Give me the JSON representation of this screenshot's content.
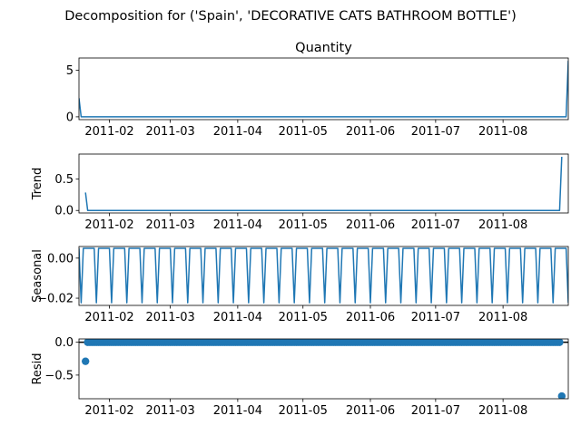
{
  "figure": {
    "suptitle": "Decomposition for ('Spain', 'DECORATIVE CATS BATHROOM BOTTLE')",
    "line_color": "#1f77b4"
  },
  "chart_data": [
    {
      "name": "observed",
      "type": "line",
      "title": "Quantity",
      "ylabel": "",
      "x_range": [
        "2011-01-18",
        "2011-08-31"
      ],
      "ylim": [
        -0.3,
        6.3
      ],
      "yticks": [
        0,
        5
      ],
      "ytick_labels": [
        "0",
        "5"
      ],
      "xtick_labels": [
        "2011-02",
        "2011-03",
        "2011-04",
        "2011-05",
        "2011-06",
        "2011-07",
        "2011-08"
      ],
      "series": [
        {
          "values": [
            [
              "2011-01-18",
              2
            ],
            [
              "2011-01-19",
              0
            ],
            [
              "2011-08-30",
              0
            ],
            [
              "2011-08-31",
              6
            ]
          ]
        }
      ]
    },
    {
      "name": "trend",
      "type": "line",
      "title": "",
      "ylabel": "Trend",
      "x_range": [
        "2011-01-18",
        "2011-08-31"
      ],
      "ylim": [
        -0.04,
        0.9
      ],
      "yticks": [
        0,
        0.5
      ],
      "ytick_labels": [
        "0.0",
        "0.5"
      ],
      "xtick_labels": [
        "2011-02",
        "2011-03",
        "2011-04",
        "2011-05",
        "2011-06",
        "2011-07",
        "2011-08"
      ],
      "series": [
        {
          "values": [
            [
              "2011-01-21",
              0.286
            ],
            [
              "2011-01-22",
              0
            ],
            [
              "2011-08-27",
              0
            ],
            [
              "2011-08-28",
              0.857
            ]
          ]
        }
      ]
    },
    {
      "name": "seasonal",
      "type": "line",
      "title": "",
      "ylabel": "Seasonal",
      "x_range": [
        "2011-01-18",
        "2011-08-31"
      ],
      "ylim": [
        -0.0236,
        0.0058
      ],
      "yticks": [
        0,
        -0.02
      ],
      "ytick_labels": [
        "0.00",
        "−0.02"
      ],
      "xtick_labels": [
        "2011-02",
        "2011-03",
        "2011-04",
        "2011-05",
        "2011-06",
        "2011-07",
        "2011-08"
      ],
      "series": [
        {
          "pattern": {
            "start": "2011-01-18",
            "end": "2011-08-31",
            "weekly_values": [
              0.0049,
              -0.0223,
              0.0049,
              0.0049,
              0.0049,
              0.0049,
              0.0049
            ]
          }
        }
      ]
    },
    {
      "name": "resid",
      "type": "scatter",
      "title": "",
      "ylabel": "Resid",
      "x_range": [
        "2011-01-18",
        "2011-08-31"
      ],
      "ylim": [
        -0.86,
        0.05
      ],
      "yticks": [
        0,
        -0.5
      ],
      "ytick_labels": [
        "0.0",
        "−0.5"
      ],
      "xtick_labels": [
        "2011-02",
        "2011-03",
        "2011-04",
        "2011-05",
        "2011-06",
        "2011-07",
        "2011-08"
      ],
      "baseline": 0,
      "series": [
        {
          "points": [
            [
              "2011-01-21",
              -0.29
            ],
            [
              "2011-08-28",
              -0.82
            ]
          ],
          "zero_from": "2011-01-22",
          "zero_to": "2011-08-27"
        }
      ]
    }
  ]
}
